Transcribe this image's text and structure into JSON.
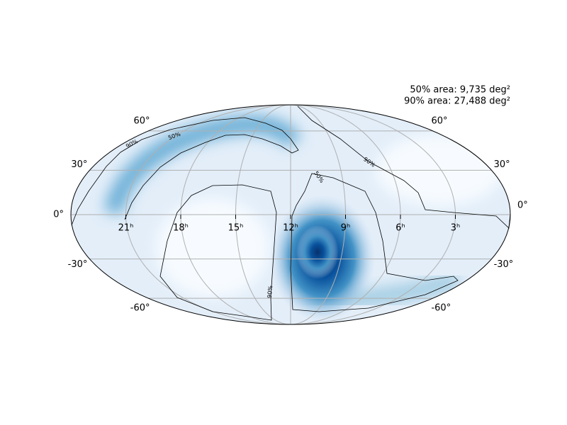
{
  "chart_data": {
    "type": "skymap",
    "annotations": [
      "50% area: 9,735 deg²",
      "90% area: 27,488 deg²"
    ],
    "xlim": [
      360,
      0
    ],
    "xticks": [
      {
        "value": 315,
        "label": "21ʰ"
      },
      {
        "value": 270,
        "label": "18ʰ"
      },
      {
        "value": 225,
        "label": "15ʰ"
      },
      {
        "value": 180,
        "label": "12ʰ"
      },
      {
        "value": 135,
        "label": "9ʰ"
      },
      {
        "value": 90,
        "label": "6ʰ"
      },
      {
        "value": 45,
        "label": "3ʰ"
      }
    ],
    "ylim": [
      -90,
      90
    ],
    "yticks": [
      {
        "value": 60,
        "label": "60°"
      },
      {
        "value": 30,
        "label": "30°"
      },
      {
        "value": 0,
        "label": "0°"
      },
      {
        "value": -30,
        "label": "-30°"
      },
      {
        "value": -60,
        "label": "-60°"
      }
    ],
    "contour_labels": [
      "90%",
      "50%",
      "50%",
      "90%",
      "90%"
    ],
    "grid": true
  }
}
